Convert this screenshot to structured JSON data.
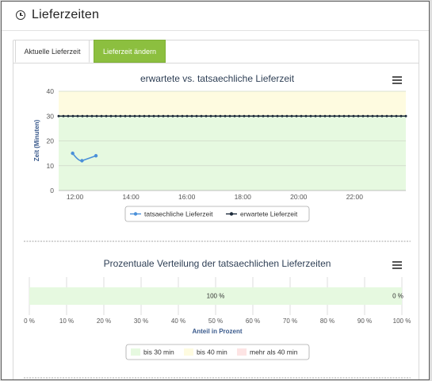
{
  "header": {
    "title": "Lieferzeiten",
    "icon": "clock-icon"
  },
  "tabs": [
    {
      "label": "Aktuelle Lieferzeit",
      "active": true
    },
    {
      "label": "Lieferzeit ändern",
      "active": false,
      "color": "#8cbf3f"
    }
  ],
  "chart1": {
    "menu_icon": "hamburger-menu-icon",
    "y_ticks": [
      "0",
      "10",
      "20",
      "30",
      "40"
    ],
    "x_ticks": [
      "12:00",
      "14:00",
      "16:00",
      "18:00",
      "20:00",
      "22:00"
    ],
    "legend": [
      {
        "label": "tatsaechliche Lieferzeit",
        "color": "#4a90d9"
      },
      {
        "label": "erwartete Lieferzeit",
        "color": "#1c2a3a"
      }
    ],
    "bands": [
      {
        "from": 0,
        "to": 30,
        "color": "#e6f9e0"
      },
      {
        "from": 30,
        "to": 40,
        "color": "#fefbe0"
      }
    ]
  },
  "chart2": {
    "menu_icon": "hamburger-menu-icon",
    "x_ticks": [
      "0 %",
      "10 %",
      "20 %",
      "30 %",
      "40 %",
      "50 %",
      "60 %",
      "70 %",
      "80 %",
      "90 %",
      "100 %"
    ],
    "legend": [
      {
        "label": "bis 30 min",
        "color": "#e6f9e0"
      },
      {
        "label": "bis 40 min",
        "color": "#fefbe0"
      },
      {
        "label": "mehr als 40 min",
        "color": "#fde4e4"
      }
    ]
  },
  "chart_data": [
    {
      "type": "line",
      "title": "erwartete vs. tatsaechliche Lieferzeit",
      "xlabel": "",
      "ylabel": "Zeit (Minuten)",
      "ylim": [
        0,
        40
      ],
      "xlim": [
        "11:25",
        "23:50"
      ],
      "grid": true,
      "legend_position": "bottom",
      "series": [
        {
          "name": "tatsaechliche Lieferzeit",
          "x": [
            "11:55",
            "12:15",
            "12:45"
          ],
          "values": [
            15,
            12,
            14
          ]
        },
        {
          "name": "erwartete Lieferzeit",
          "x_range": [
            "11:25",
            "23:50"
          ],
          "points": 74,
          "constant_value": 30
        }
      ]
    },
    {
      "type": "bar",
      "orientation": "horizontal",
      "stacked": true,
      "title": "Prozentuale Verteilung der tatsaechlichen Lieferzeiten",
      "xlabel": "Anteil in Prozent",
      "xlim": [
        0,
        100
      ],
      "legend_position": "bottom",
      "series": [
        {
          "name": "bis 30 min",
          "values": [
            100
          ],
          "label": "100 %"
        },
        {
          "name": "bis 40 min",
          "values": [
            0
          ]
        },
        {
          "name": "mehr als 40 min",
          "values": [
            0
          ],
          "label": "0 %"
        }
      ]
    }
  ]
}
